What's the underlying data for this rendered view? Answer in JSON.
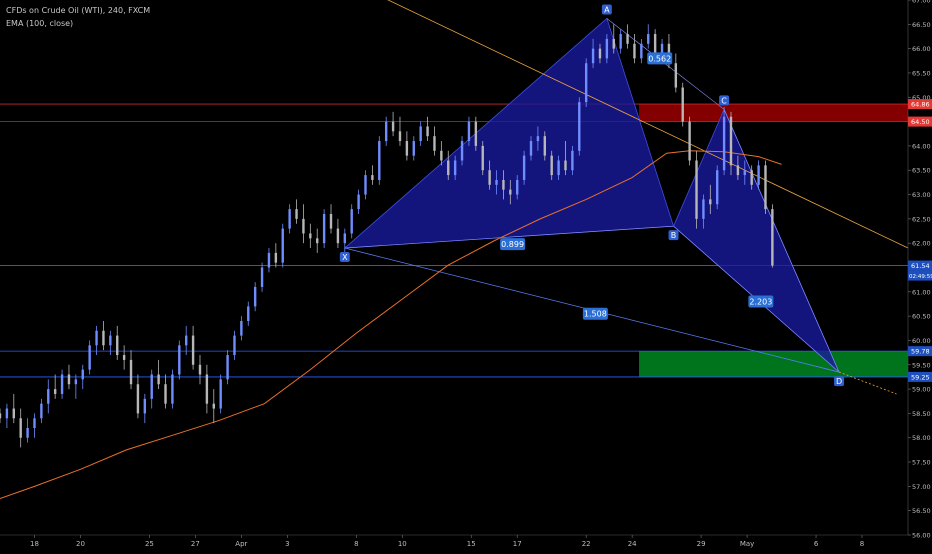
{
  "chart_data": {
    "type": "candlestick",
    "title": "CFDs on Crude Oil (WTI), 240, FXCM",
    "indicator_label": "EMA (100, close)",
    "y_ticks": [
      "56.00",
      "56.50",
      "57.00",
      "57.50",
      "58.00",
      "58.50",
      "59.00",
      "59.50",
      "60.00",
      "60.50",
      "61.00",
      "61.50",
      "62.00",
      "62.50",
      "63.00",
      "63.50",
      "64.00",
      "64.50",
      "65.00",
      "65.50",
      "66.00",
      "66.50",
      "67.00"
    ],
    "ylim": [
      56.0,
      67.0
    ],
    "x_ticks": [
      "18",
      "20",
      "25",
      "27",
      "Apr",
      "3",
      "8",
      "10",
      "15",
      "17",
      "22",
      "24",
      "29",
      "May",
      "6",
      "8"
    ],
    "x_tick_positions": [
      0,
      2,
      5,
      7,
      9,
      11,
      14,
      16,
      19,
      21,
      24,
      26,
      29,
      31,
      34,
      36
    ],
    "x_range": [
      -1.5,
      38.0
    ],
    "horizontal_levels": [
      {
        "label": "64.86",
        "value": 64.86,
        "color": "#c62828"
      },
      {
        "label": "64.50",
        "value": 64.5,
        "color": "#c62828"
      },
      {
        "label": "61.54",
        "value": 61.54,
        "color": "#2962ff"
      },
      {
        "label": "59.78",
        "value": 59.78,
        "color": "#2962ff"
      },
      {
        "label": "59.25",
        "value": 59.25,
        "color": "#2962ff"
      }
    ],
    "current_price": {
      "label": "61.54",
      "countdown": "02:49:59"
    },
    "harmonic_points": [
      {
        "label": "X",
        "x": 13.5,
        "y": 61.9
      },
      {
        "label": "A",
        "x": 24.9,
        "y": 66.62
      },
      {
        "label": "B",
        "x": 27.8,
        "y": 62.35
      },
      {
        "label": "C",
        "x": 30.0,
        "y": 64.75
      },
      {
        "label": "D",
        "x": 35.0,
        "y": 59.35
      }
    ],
    "ratios": [
      {
        "label": "0.562",
        "x": 27.2,
        "y": 65.8
      },
      {
        "label": "0.899",
        "x": 20.8,
        "y": 61.98
      },
      {
        "label": "1.508",
        "x": 24.4,
        "y": 60.55
      },
      {
        "label": "2.203",
        "x": 31.6,
        "y": 60.8
      }
    ],
    "zones": [
      {
        "name": "resistance",
        "x0": 26.3,
        "x1": 38.0,
        "y0": 64.5,
        "y1": 64.86,
        "color": "#8b0000"
      },
      {
        "name": "target",
        "x0": 26.3,
        "x1": 38.0,
        "y0": 59.25,
        "y1": 59.78,
        "color": "#007a1f"
      }
    ],
    "trendlines": [
      {
        "name": "orange-descending",
        "x1": 14.5,
        "y1": 67.2,
        "x2": 38.0,
        "y2": 61.9,
        "color": "#e8a33d"
      },
      {
        "name": "x-d-line",
        "x1": 13.5,
        "y1": 61.9,
        "x2": 35.0,
        "y2": 59.35,
        "color": "#5c7cfa"
      },
      {
        "name": "d-extension",
        "x1": 35.0,
        "y1": 59.35,
        "x2": 37.5,
        "y2": 58.9,
        "color": "#e8a33d"
      }
    ],
    "ema_100": [
      [
        -1.5,
        56.75
      ],
      [
        0,
        57.0
      ],
      [
        2,
        57.35
      ],
      [
        4,
        57.75
      ],
      [
        6,
        58.05
      ],
      [
        8,
        58.35
      ],
      [
        10,
        58.7
      ],
      [
        12,
        59.4
      ],
      [
        14,
        60.15
      ],
      [
        16,
        60.85
      ],
      [
        18,
        61.55
      ],
      [
        20,
        62.05
      ],
      [
        22,
        62.5
      ],
      [
        24,
        62.9
      ],
      [
        26,
        63.35
      ],
      [
        27.5,
        63.85
      ],
      [
        28.5,
        63.9
      ],
      [
        30,
        63.88
      ],
      [
        31.5,
        63.78
      ],
      [
        32.5,
        63.62
      ]
    ],
    "candles": [
      [
        -1.5,
        58.5,
        58.6,
        58.3,
        58.4
      ],
      [
        -1.2,
        58.4,
        58.7,
        58.2,
        58.6
      ],
      [
        -0.9,
        58.6,
        58.9,
        58.3,
        58.4
      ],
      [
        -0.6,
        58.4,
        58.6,
        57.8,
        58.0
      ],
      [
        -0.3,
        58.0,
        58.4,
        57.9,
        58.2
      ],
      [
        0.0,
        58.2,
        58.5,
        58.0,
        58.4
      ],
      [
        0.3,
        58.4,
        58.8,
        58.3,
        58.7
      ],
      [
        0.6,
        58.7,
        59.2,
        58.5,
        59.0
      ],
      [
        0.9,
        59.0,
        59.3,
        58.8,
        58.9
      ],
      [
        1.2,
        58.9,
        59.4,
        58.8,
        59.3
      ],
      [
        1.5,
        59.3,
        59.5,
        59.0,
        59.1
      ],
      [
        1.8,
        59.1,
        59.3,
        58.8,
        59.2
      ],
      [
        2.1,
        59.2,
        59.5,
        59.0,
        59.4
      ],
      [
        2.4,
        59.4,
        60.0,
        59.3,
        59.9
      ],
      [
        2.7,
        59.9,
        60.3,
        59.7,
        60.2
      ],
      [
        3.0,
        60.2,
        60.4,
        59.8,
        59.9
      ],
      [
        3.3,
        59.9,
        60.2,
        59.7,
        60.1
      ],
      [
        3.6,
        60.1,
        60.3,
        59.6,
        59.7
      ],
      [
        3.9,
        59.7,
        59.9,
        59.4,
        59.6
      ],
      [
        4.2,
        59.6,
        59.8,
        59.0,
        59.1
      ],
      [
        4.5,
        59.1,
        59.3,
        58.4,
        58.5
      ],
      [
        4.8,
        58.5,
        58.9,
        58.3,
        58.8
      ],
      [
        5.1,
        58.8,
        59.4,
        58.6,
        59.3
      ],
      [
        5.4,
        59.3,
        59.6,
        59.0,
        59.1
      ],
      [
        5.7,
        59.1,
        59.3,
        58.6,
        58.7
      ],
      [
        6.0,
        58.7,
        59.4,
        58.6,
        59.3
      ],
      [
        6.3,
        59.3,
        60.0,
        59.2,
        59.9
      ],
      [
        6.6,
        59.9,
        60.3,
        59.7,
        60.1
      ],
      [
        6.9,
        60.1,
        60.3,
        59.4,
        59.5
      ],
      [
        7.2,
        59.5,
        59.7,
        59.1,
        59.3
      ],
      [
        7.5,
        59.3,
        59.5,
        58.5,
        58.7
      ],
      [
        7.8,
        58.7,
        59.0,
        58.3,
        58.6
      ],
      [
        8.1,
        58.6,
        59.3,
        58.5,
        59.2
      ],
      [
        8.4,
        59.2,
        59.8,
        59.1,
        59.7
      ],
      [
        8.7,
        59.7,
        60.2,
        59.6,
        60.1
      ],
      [
        9.0,
        60.1,
        60.5,
        60.0,
        60.4
      ],
      [
        9.3,
        60.4,
        60.8,
        60.3,
        60.7
      ],
      [
        9.6,
        60.7,
        61.2,
        60.6,
        61.1
      ],
      [
        9.9,
        61.1,
        61.6,
        61.0,
        61.5
      ],
      [
        10.2,
        61.5,
        61.9,
        61.4,
        61.8
      ],
      [
        10.5,
        61.8,
        62.0,
        61.5,
        61.6
      ],
      [
        10.8,
        61.6,
        62.4,
        61.5,
        62.3
      ],
      [
        11.1,
        62.3,
        62.8,
        62.2,
        62.7
      ],
      [
        11.4,
        62.7,
        62.9,
        62.4,
        62.5
      ],
      [
        11.7,
        62.5,
        62.8,
        62.0,
        62.2
      ],
      [
        12.0,
        62.2,
        62.4,
        61.9,
        62.1
      ],
      [
        12.3,
        62.1,
        62.3,
        61.8,
        62.0
      ],
      [
        12.6,
        62.0,
        62.7,
        61.9,
        62.6
      ],
      [
        12.9,
        62.6,
        62.8,
        62.2,
        62.3
      ],
      [
        13.2,
        62.3,
        62.5,
        61.9,
        62.0
      ],
      [
        13.5,
        62.0,
        62.3,
        61.8,
        62.2
      ],
      [
        13.8,
        62.2,
        62.8,
        62.1,
        62.7
      ],
      [
        14.1,
        62.7,
        63.1,
        62.6,
        63.0
      ],
      [
        14.4,
        63.0,
        63.5,
        62.9,
        63.4
      ],
      [
        14.7,
        63.4,
        63.6,
        63.2,
        63.3
      ],
      [
        15.0,
        63.3,
        64.2,
        63.2,
        64.1
      ],
      [
        15.3,
        64.1,
        64.6,
        64.0,
        64.5
      ],
      [
        15.6,
        64.5,
        64.7,
        64.2,
        64.3
      ],
      [
        15.9,
        64.3,
        64.6,
        64.0,
        64.1
      ],
      [
        16.2,
        64.1,
        64.3,
        63.7,
        63.8
      ],
      [
        16.5,
        63.8,
        64.2,
        63.7,
        64.1
      ],
      [
        16.8,
        64.1,
        64.5,
        64.0,
        64.4
      ],
      [
        17.1,
        64.4,
        64.6,
        64.1,
        64.2
      ],
      [
        17.4,
        64.2,
        64.4,
        63.8,
        63.9
      ],
      [
        17.7,
        63.9,
        64.1,
        63.6,
        63.7
      ],
      [
        18.0,
        63.7,
        63.9,
        63.3,
        63.4
      ],
      [
        18.3,
        63.4,
        63.8,
        63.3,
        63.7
      ],
      [
        18.6,
        63.7,
        64.2,
        63.6,
        64.1
      ],
      [
        18.9,
        64.1,
        64.6,
        64.0,
        64.5
      ],
      [
        19.2,
        64.5,
        64.6,
        63.9,
        64.0
      ],
      [
        19.5,
        64.0,
        64.1,
        63.4,
        63.5
      ],
      [
        19.8,
        63.5,
        63.7,
        63.1,
        63.2
      ],
      [
        20.1,
        63.2,
        63.5,
        63.0,
        63.3
      ],
      [
        20.4,
        63.3,
        63.5,
        62.9,
        63.1
      ],
      [
        20.7,
        63.1,
        63.3,
        62.8,
        63.0
      ],
      [
        21.0,
        63.0,
        63.4,
        62.9,
        63.3
      ],
      [
        21.3,
        63.3,
        63.9,
        63.2,
        63.8
      ],
      [
        21.6,
        63.8,
        64.2,
        63.7,
        64.1
      ],
      [
        21.9,
        64.1,
        64.4,
        63.9,
        64.2
      ],
      [
        22.2,
        64.2,
        64.3,
        63.7,
        63.8
      ],
      [
        22.5,
        63.8,
        63.9,
        63.3,
        63.4
      ],
      [
        22.8,
        63.4,
        63.8,
        63.3,
        63.7
      ],
      [
        23.1,
        63.7,
        64.1,
        63.4,
        63.5
      ],
      [
        23.4,
        63.5,
        64.0,
        63.4,
        63.9
      ],
      [
        23.7,
        63.9,
        65.0,
        63.8,
        64.9
      ],
      [
        24.0,
        64.9,
        65.8,
        64.8,
        65.7
      ],
      [
        24.3,
        65.7,
        66.2,
        65.6,
        66.0
      ],
      [
        24.6,
        66.0,
        66.1,
        65.7,
        65.8
      ],
      [
        24.9,
        65.8,
        66.3,
        65.7,
        66.2
      ],
      [
        25.2,
        66.2,
        66.5,
        65.9,
        66.0
      ],
      [
        25.5,
        66.0,
        66.4,
        65.9,
        66.3
      ],
      [
        25.8,
        66.3,
        66.5,
        66.0,
        66.1
      ],
      [
        26.1,
        66.1,
        66.3,
        65.7,
        65.8
      ],
      [
        26.4,
        65.8,
        66.2,
        65.7,
        66.1
      ],
      [
        26.7,
        66.1,
        66.5,
        66.0,
        66.3
      ],
      [
        27.0,
        66.3,
        66.4,
        65.8,
        65.9
      ],
      [
        27.3,
        65.9,
        66.2,
        65.8,
        66.1
      ],
      [
        27.6,
        66.1,
        66.3,
        65.6,
        65.7
      ],
      [
        27.9,
        65.7,
        65.9,
        65.1,
        65.2
      ],
      [
        28.2,
        65.2,
        65.3,
        64.4,
        64.5
      ],
      [
        28.5,
        64.5,
        64.6,
        63.6,
        63.7
      ],
      [
        28.8,
        63.7,
        63.9,
        62.3,
        62.5
      ],
      [
        29.1,
        62.5,
        63.0,
        62.3,
        62.9
      ],
      [
        29.4,
        62.9,
        63.2,
        62.6,
        62.8
      ],
      [
        29.7,
        62.8,
        63.6,
        62.7,
        63.5
      ],
      [
        30.0,
        63.5,
        64.8,
        63.4,
        64.6
      ],
      [
        30.3,
        64.6,
        64.7,
        63.4,
        63.6
      ],
      [
        30.6,
        63.6,
        63.8,
        63.3,
        63.4
      ],
      [
        30.9,
        63.4,
        63.7,
        63.2,
        63.5
      ],
      [
        31.2,
        63.5,
        63.6,
        63.1,
        63.2
      ],
      [
        31.5,
        63.2,
        63.7,
        63.1,
        63.6
      ],
      [
        31.8,
        63.6,
        63.7,
        62.6,
        62.7
      ],
      [
        32.1,
        62.7,
        62.8,
        61.5,
        61.54
      ]
    ]
  }
}
